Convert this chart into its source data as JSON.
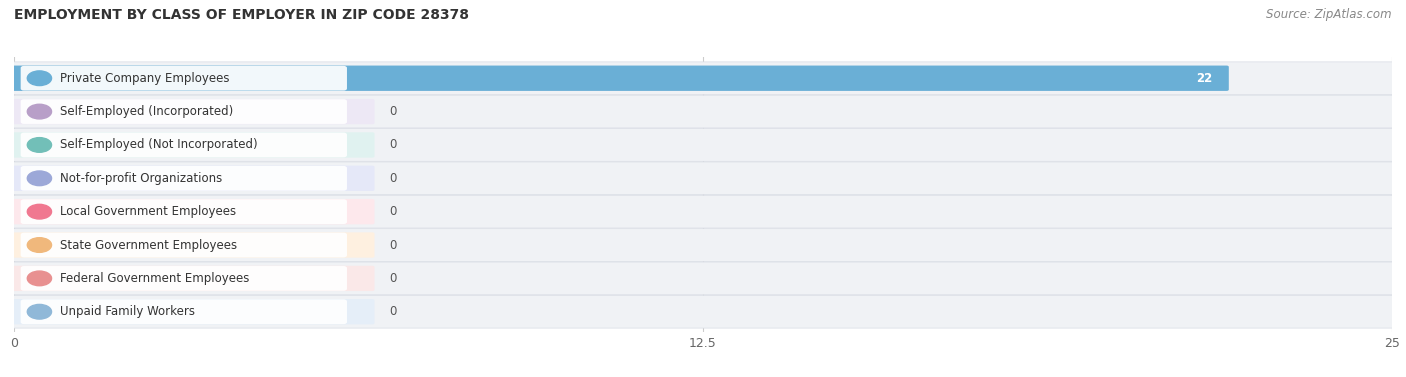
{
  "title": "EMPLOYMENT BY CLASS OF EMPLOYER IN ZIP CODE 28378",
  "source": "Source: ZipAtlas.com",
  "categories": [
    "Private Company Employees",
    "Self-Employed (Incorporated)",
    "Self-Employed (Not Incorporated)",
    "Not-for-profit Organizations",
    "Local Government Employees",
    "State Government Employees",
    "Federal Government Employees",
    "Unpaid Family Workers"
  ],
  "values": [
    22,
    0,
    0,
    0,
    0,
    0,
    0,
    0
  ],
  "bar_colors": [
    "#6aafd6",
    "#b89fc8",
    "#72bfb8",
    "#9ca8d8",
    "#f07890",
    "#f0b87c",
    "#e89090",
    "#90b8d8"
  ],
  "bar_bg_colors": [
    "#e8f2fa",
    "#ede8f5",
    "#e0f2f0",
    "#e5e8f8",
    "#fde8ec",
    "#fef0e0",
    "#fae8e8",
    "#e5eef8"
  ],
  "row_bg_color": "#f0f2f5",
  "xlim": [
    0,
    25
  ],
  "xticks": [
    0,
    12.5,
    25
  ],
  "background_color": "#ffffff",
  "title_fontsize": 10,
  "source_fontsize": 8.5,
  "label_fontsize": 8.5,
  "value_fontsize": 8.5
}
